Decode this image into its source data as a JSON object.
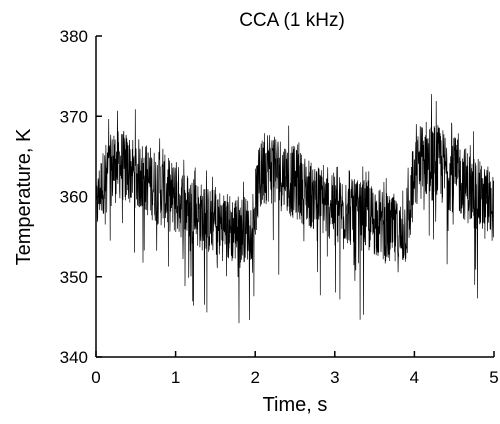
{
  "chart_data": {
    "type": "line",
    "title": "CCA (1 kHz)",
    "xlabel": "Time, s",
    "ylabel": "Temperature, K",
    "xlim": [
      0,
      5
    ],
    "ylim": [
      340,
      380
    ],
    "x_ticks": [
      0,
      1,
      2,
      3,
      4,
      5
    ],
    "y_ticks": [
      340,
      350,
      360,
      370,
      380
    ],
    "grid": false,
    "series": [
      {
        "color": "#000000",
        "envelope": {
          "x": [
            0,
            0.05,
            0.15,
            0.3,
            0.5,
            0.8,
            1.1,
            1.4,
            1.7,
            1.95,
            2.05,
            2.15,
            2.3,
            2.6,
            2.9,
            3.2,
            3.5,
            3.8,
            3.9,
            4.0,
            4.1,
            4.3,
            4.6,
            4.9,
            5.0
          ],
          "mean": [
            358,
            361,
            363,
            364,
            363,
            361,
            359,
            357,
            356,
            356,
            362,
            364,
            363,
            361,
            359,
            358,
            357,
            355,
            356,
            362,
            365,
            364,
            362,
            359,
            359
          ],
          "max": [
            362,
            365,
            370,
            372,
            371,
            369,
            366,
            364,
            363,
            362,
            368,
            372,
            371,
            368,
            365,
            364,
            364,
            362,
            363,
            371,
            374,
            373,
            370,
            367,
            366
          ],
          "min": [
            346,
            348,
            350,
            352,
            351,
            348,
            346,
            345,
            343,
            344,
            348,
            351,
            350,
            348,
            346,
            345,
            344,
            342,
            343,
            349,
            352,
            351,
            349,
            346,
            346
          ]
        }
      }
    ]
  }
}
